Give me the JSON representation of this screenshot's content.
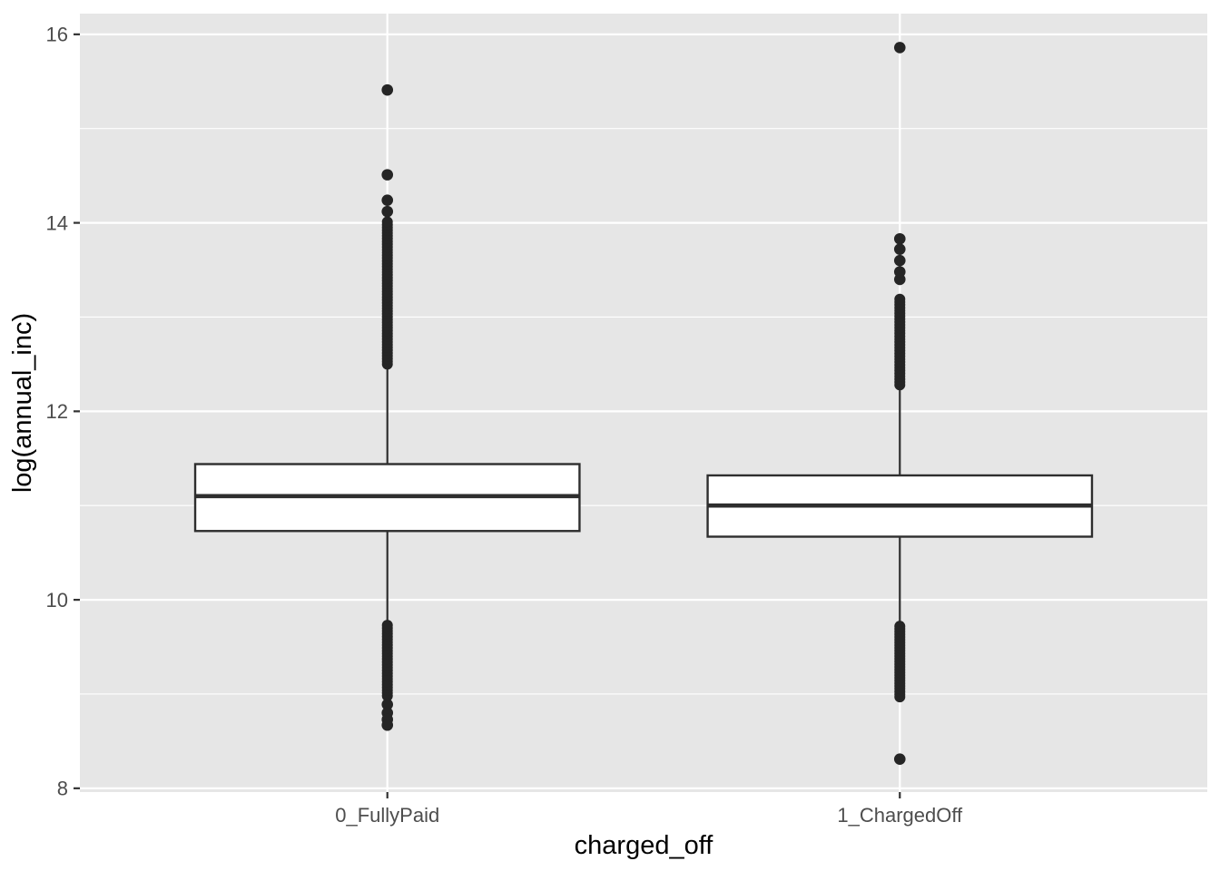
{
  "chart_data": {
    "type": "boxplot",
    "title": "",
    "xlabel": "charged_off",
    "ylabel": "log(annual_inc)",
    "categories": [
      "0_FullyPaid",
      "1_ChargedOff"
    ],
    "y_ticks": [
      8,
      10,
      12,
      14,
      16
    ],
    "y_tick_labels": [
      "8",
      "10",
      "12",
      "14",
      "16"
    ],
    "y_minor_gridlines": [
      9,
      11,
      13,
      15
    ],
    "ylim": [
      7.96,
      16.22
    ],
    "grid": "on",
    "legend": "none",
    "series": [
      {
        "category": "0_FullyPaid",
        "q1": 10.73,
        "median": 11.1,
        "q3": 11.44,
        "whisker_low": 9.75,
        "whisker_high": 12.47,
        "outliers_high_isolated": [
          14.12,
          14.24,
          14.51,
          15.41
        ],
        "outliers_high_band": {
          "from": 12.5,
          "to": 14.01,
          "count": 52
        },
        "outliers_low_band": {
          "from": 8.98,
          "to": 9.73,
          "count": 26
        },
        "outliers_low_isolated": [
          8.89,
          8.8,
          8.73,
          8.67
        ]
      },
      {
        "category": "1_ChargedOff",
        "q1": 10.67,
        "median": 11.0,
        "q3": 11.32,
        "whisker_low": 9.74,
        "whisker_high": 12.26,
        "outliers_high_isolated": [
          13.4,
          13.48,
          13.6,
          13.72,
          13.83,
          15.86
        ],
        "outliers_high_band": {
          "from": 12.28,
          "to": 13.19,
          "count": 31
        },
        "outliers_low_band": {
          "from": 8.97,
          "to": 9.72,
          "count": 27
        },
        "outliers_low_isolated": [
          8.31
        ]
      }
    ],
    "style": {
      "panel_bg": "#e6e6e6",
      "grid_major_color": "#ffffff",
      "grid_minor_color": "#ffffff",
      "box_fill": "#ffffff",
      "box_stroke": "#2e2e2e",
      "median_color": "#2e2e2e",
      "whisker_color": "#2e2e2e",
      "point_color": "#252525",
      "tick_mark_color": "#333333",
      "tick_label_color": "#4d4d4d",
      "axis_title_color": "#000000"
    }
  }
}
